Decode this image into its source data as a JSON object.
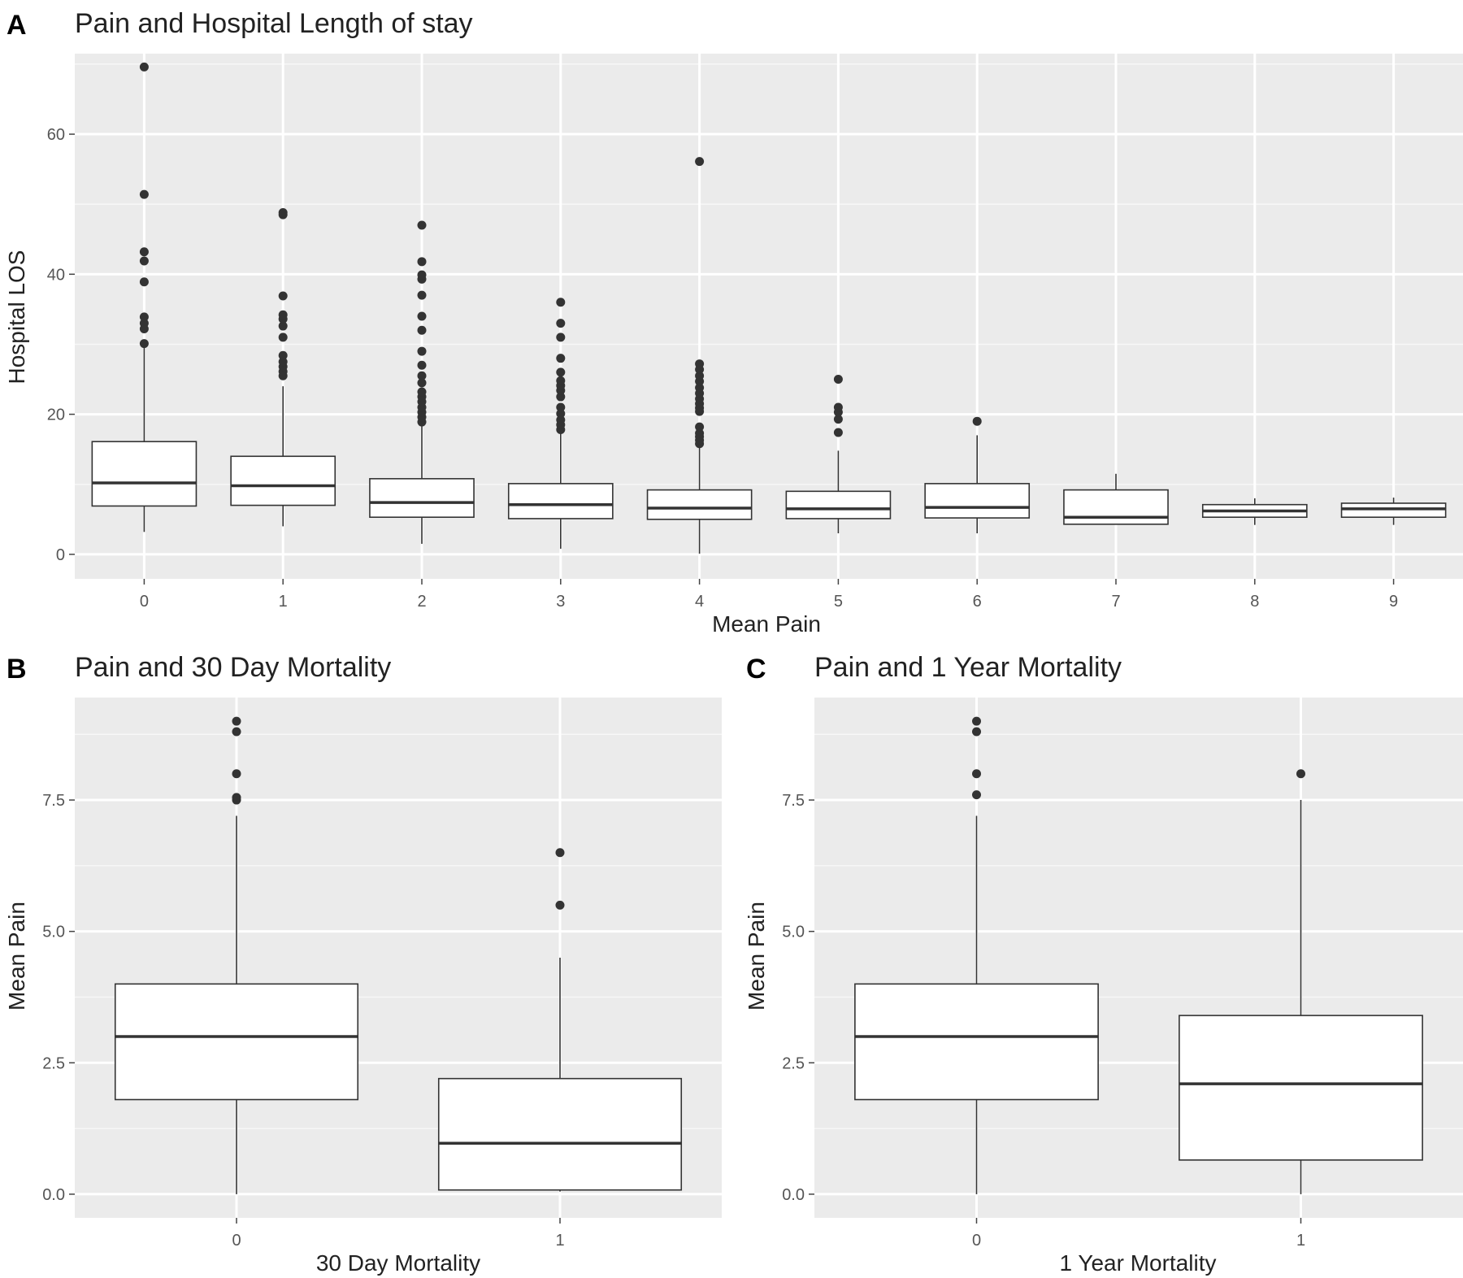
{
  "chart_data": [
    {
      "type": "box",
      "panel_label": "A",
      "title": "Pain and Hospital Length of stay",
      "xlabel": "Mean Pain",
      "ylabel": "Hospital LOS",
      "categories": [
        "0",
        "1",
        "2",
        "3",
        "4",
        "5",
        "6",
        "7",
        "8",
        "9"
      ],
      "ylim": [
        -3.5,
        71.5
      ],
      "yticks": [
        0,
        20,
        40,
        60
      ],
      "ytick_labels": [
        "0",
        "20",
        "40",
        "60"
      ],
      "grid": true,
      "boxes": [
        {
          "category": "0",
          "whisker_low": 3.2,
          "q1": 6.9,
          "median": 10.2,
          "q3": 16.1,
          "whisker_high": 29.5,
          "outliers": [
            30.1,
            32.2,
            33.0,
            33.9,
            38.9,
            41.9,
            43.2,
            51.4,
            69.6
          ]
        },
        {
          "category": "1",
          "whisker_low": 4.0,
          "q1": 7.0,
          "median": 9.8,
          "q3": 14.0,
          "whisker_high": 24.0,
          "outliers": [
            25.5,
            26.1,
            26.8,
            27.5,
            28.4,
            31.0,
            32.6,
            33.6,
            34.2,
            36.9,
            48.5,
            48.8
          ]
        },
        {
          "category": "2",
          "whisker_low": 1.5,
          "q1": 5.3,
          "median": 7.4,
          "q3": 10.8,
          "whisker_high": 18.5,
          "outliers": [
            18.9,
            19.6,
            20.3,
            21.0,
            21.8,
            22.5,
            23.2,
            24.5,
            25.5,
            27.0,
            29.0,
            32.0,
            34.0,
            37.0,
            39.3,
            39.9,
            41.8,
            47.0
          ]
        },
        {
          "category": "3",
          "whisker_low": 0.8,
          "q1": 5.1,
          "median": 7.1,
          "q3": 10.1,
          "whisker_high": 17.6,
          "outliers": [
            17.8,
            18.5,
            19.2,
            20.1,
            21.0,
            22.5,
            23.4,
            24.1,
            24.8,
            26.0,
            28.0,
            31.0,
            33.0,
            36.0
          ]
        },
        {
          "category": "4",
          "whisker_low": 0.1,
          "q1": 5.0,
          "median": 6.6,
          "q3": 9.2,
          "whisker_high": 15.5,
          "outliers": [
            15.8,
            16.3,
            16.8,
            17.3,
            18.2,
            20.4,
            20.9,
            21.5,
            22.2,
            23.0,
            23.8,
            24.7,
            25.5,
            26.4,
            27.2,
            56.1
          ]
        },
        {
          "category": "5",
          "whisker_low": 3.0,
          "q1": 5.1,
          "median": 6.5,
          "q3": 9.0,
          "whisker_high": 14.8,
          "outliers": [
            17.4,
            19.3,
            20.3,
            21.0,
            25.0
          ]
        },
        {
          "category": "6",
          "whisker_low": 3.0,
          "q1": 5.2,
          "median": 6.7,
          "q3": 10.1,
          "whisker_high": 17.0,
          "outliers": [
            19.0
          ]
        },
        {
          "category": "7",
          "whisker_low": 4.3,
          "q1": 4.3,
          "median": 5.3,
          "q3": 9.2,
          "whisker_high": 11.5,
          "outliers": []
        },
        {
          "category": "8",
          "whisker_low": 4.2,
          "q1": 5.3,
          "median": 6.2,
          "q3": 7.1,
          "whisker_high": 8.0,
          "outliers": []
        },
        {
          "category": "9",
          "whisker_low": 4.2,
          "q1": 5.3,
          "median": 6.5,
          "q3": 7.3,
          "whisker_high": 8.1,
          "outliers": []
        }
      ]
    },
    {
      "type": "box",
      "panel_label": "B",
      "title": "Pain and 30 Day Mortality",
      "xlabel": "30 Day Mortality",
      "ylabel": "Mean Pain",
      "categories": [
        "0",
        "1"
      ],
      "ylim": [
        -0.45,
        9.45
      ],
      "yticks": [
        0,
        2.5,
        5,
        7.5
      ],
      "ytick_labels": [
        "0.0",
        "2.5",
        "5.0",
        "7.5"
      ],
      "grid": true,
      "boxes": [
        {
          "category": "0",
          "whisker_low": 0.0,
          "q1": 1.8,
          "median": 3.0,
          "q3": 4.0,
          "whisker_high": 7.2,
          "outliers": [
            7.5,
            7.55,
            8.0,
            8.8,
            9.0
          ]
        },
        {
          "category": "1",
          "whisker_low": 0.05,
          "q1": 0.08,
          "median": 0.97,
          "q3": 2.2,
          "whisker_high": 4.5,
          "outliers": [
            5.5,
            6.5
          ]
        }
      ]
    },
    {
      "type": "box",
      "panel_label": "C",
      "title": "Pain and 1 Year Mortality",
      "xlabel": "1 Year Mortality",
      "ylabel": "Mean Pain",
      "categories": [
        "0",
        "1"
      ],
      "ylim": [
        -0.45,
        9.45
      ],
      "yticks": [
        0,
        2.5,
        5,
        7.5
      ],
      "ytick_labels": [
        "0.0",
        "2.5",
        "5.0",
        "7.5"
      ],
      "grid": true,
      "boxes": [
        {
          "category": "0",
          "whisker_low": 0.0,
          "q1": 1.8,
          "median": 3.0,
          "q3": 4.0,
          "whisker_high": 7.2,
          "outliers": [
            7.6,
            8.0,
            8.8,
            9.0
          ]
        },
        {
          "category": "1",
          "whisker_low": 0.0,
          "q1": 0.65,
          "median": 2.1,
          "q3": 3.4,
          "whisker_high": 7.5,
          "outliers": [
            8.0
          ]
        }
      ]
    }
  ]
}
